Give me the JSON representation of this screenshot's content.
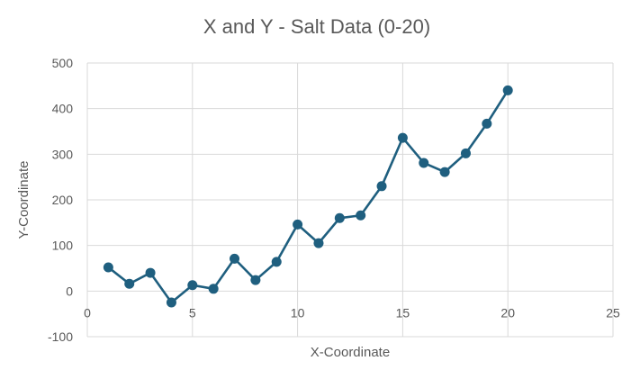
{
  "chart_data": {
    "type": "scatter",
    "title": "X and Y - Salt Data (0-20)",
    "xlabel": "X-Coordinate",
    "ylabel": "Y-Coordinate",
    "xlim": [
      0,
      25
    ],
    "ylim": [
      -100,
      500
    ],
    "x_ticks": [
      0,
      5,
      10,
      15,
      20,
      25
    ],
    "y_ticks": [
      -100,
      0,
      100,
      200,
      300,
      400,
      500
    ],
    "grid": true,
    "legend": "none",
    "series": [
      {
        "color": "#1f5f7f",
        "markers": "circle",
        "lines": "straight",
        "x": [
          1,
          2,
          3,
          4,
          5,
          6,
          7,
          8,
          9,
          10,
          11,
          12,
          13,
          14,
          15,
          16,
          17,
          18,
          19,
          20
        ],
        "y": [
          52,
          16,
          40,
          -25,
          13,
          5,
          71,
          24,
          64,
          146,
          105,
          160,
          166,
          230,
          336,
          281,
          261,
          302,
          367,
          440
        ]
      }
    ]
  }
}
